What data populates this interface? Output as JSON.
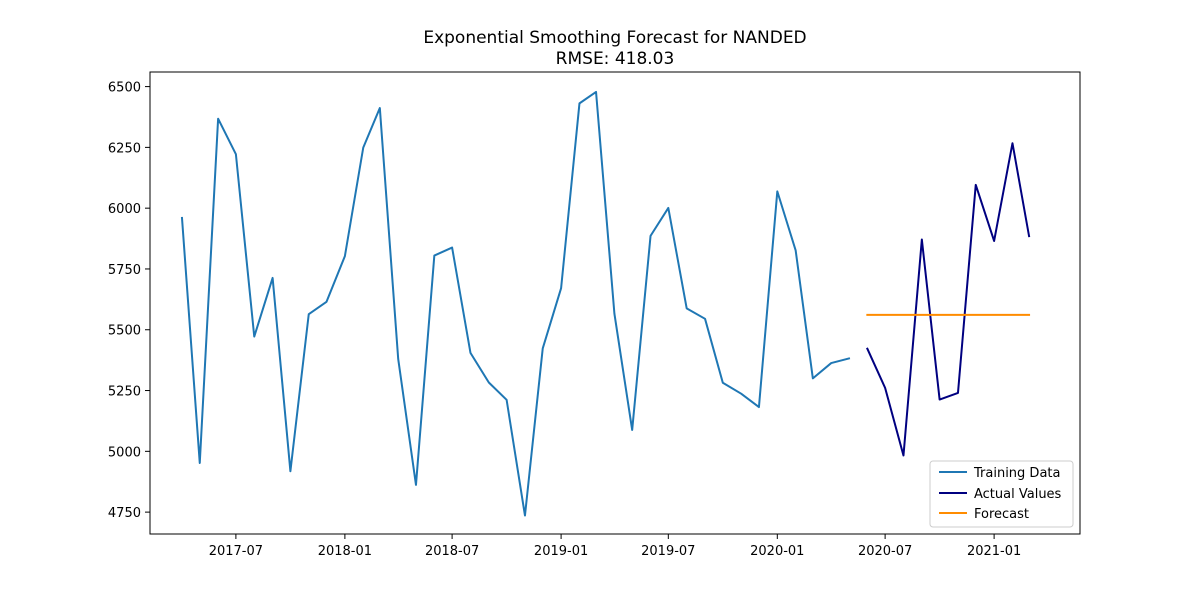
{
  "chart_data": {
    "type": "line",
    "title": "Exponential Smoothing Forecast for NANDED",
    "subtitle": "RMSE: 418.03",
    "xlabel": "",
    "ylabel": "",
    "xlim": [
      "2017-02-06",
      "2021-05-26"
    ],
    "ylim": [
      4660,
      6560
    ],
    "x_ticks": [
      "2017-07",
      "2018-01",
      "2018-07",
      "2019-01",
      "2019-07",
      "2020-01",
      "2020-07",
      "2021-01"
    ],
    "y_ticks": [
      4750,
      5000,
      5250,
      5500,
      5750,
      6000,
      6250,
      6500
    ],
    "grid": false,
    "legend_position": "lower-right",
    "series": [
      {
        "name": "Training Data",
        "color": "#1f77b4",
        "x": [
          "2017-04",
          "2017-05",
          "2017-06",
          "2017-07",
          "2017-08",
          "2017-09",
          "2017-10",
          "2017-11",
          "2017-12",
          "2018-01",
          "2018-02",
          "2018-03",
          "2018-04",
          "2018-05",
          "2018-06",
          "2018-07",
          "2018-08",
          "2018-09",
          "2018-10",
          "2018-11",
          "2018-12",
          "2019-01",
          "2019-02",
          "2019-03",
          "2019-04",
          "2019-05",
          "2019-06",
          "2019-07",
          "2019-08",
          "2019-09",
          "2019-10",
          "2019-11",
          "2019-12",
          "2020-01",
          "2020-02",
          "2020-03",
          "2020-04",
          "2020-05"
        ],
        "values": [
          5960,
          4952,
          6368,
          6222,
          5472,
          5713,
          4918,
          5564,
          5615,
          5803,
          6249,
          6412,
          5380,
          4862,
          5805,
          5838,
          5405,
          5283,
          5212,
          4736,
          5423,
          5671,
          6431,
          6478,
          5566,
          5088,
          5886,
          6001,
          5588,
          5545,
          5282,
          5237,
          5182,
          6069,
          5826,
          5300,
          5363,
          5382
        ]
      },
      {
        "name": "Actual Values",
        "color": "#000080",
        "x": [
          "2020-06",
          "2020-07",
          "2020-08",
          "2020-09",
          "2020-10",
          "2020-11",
          "2020-12",
          "2021-01",
          "2021-02",
          "2021-03"
        ],
        "values": [
          5422,
          5261,
          4983,
          5871,
          5213,
          5240,
          6096,
          5865,
          6267,
          5885
        ]
      },
      {
        "name": "Forecast",
        "color": "#ff8c00",
        "x": [
          "2020-06",
          "2020-07",
          "2020-08",
          "2020-09",
          "2020-10",
          "2020-11",
          "2020-12",
          "2021-01",
          "2021-02",
          "2021-03"
        ],
        "values": [
          5561,
          5561,
          5561,
          5561,
          5561,
          5561,
          5561,
          5561,
          5561,
          5561
        ]
      }
    ]
  }
}
